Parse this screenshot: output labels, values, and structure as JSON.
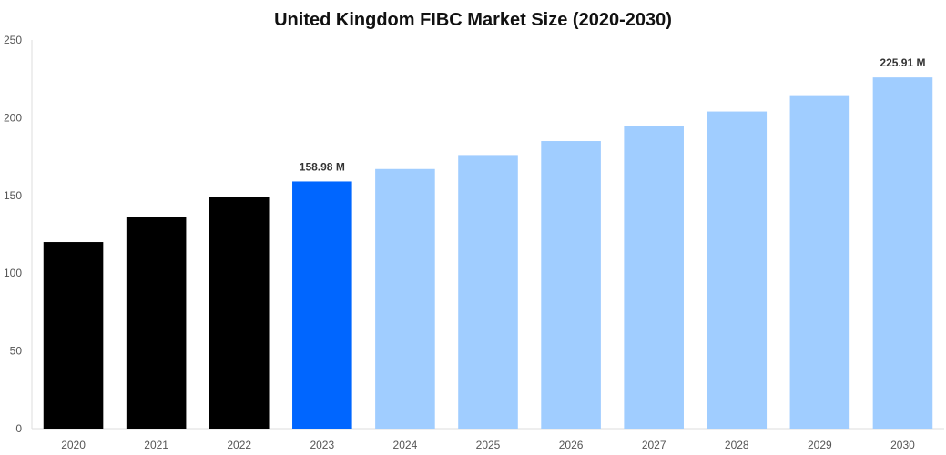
{
  "chart_data": {
    "type": "bar",
    "title": "United Kingdom FIBC Market Size (2020-2030)",
    "xlabel": "",
    "ylabel": "",
    "categories": [
      "2020",
      "2021",
      "2022",
      "2023",
      "2024",
      "2025",
      "2026",
      "2027",
      "2028",
      "2029",
      "2030"
    ],
    "values": [
      120,
      136,
      149,
      158.98,
      167,
      176,
      185,
      194.5,
      204,
      214.5,
      225.91
    ],
    "bar_colors": [
      "#000000",
      "#000000",
      "#000000",
      "#0066ff",
      "#a0cdff",
      "#a0cdff",
      "#a0cdff",
      "#a0cdff",
      "#a0cdff",
      "#a0cdff",
      "#a0cdff"
    ],
    "data_labels": [
      {
        "category": "2023",
        "text": "158.98 M"
      },
      {
        "category": "2030",
        "text": "225.91 M"
      }
    ],
    "ylim": [
      0,
      250
    ],
    "yticks": [
      0,
      50,
      100,
      150,
      200,
      250
    ],
    "grid": false,
    "legend": "none"
  }
}
